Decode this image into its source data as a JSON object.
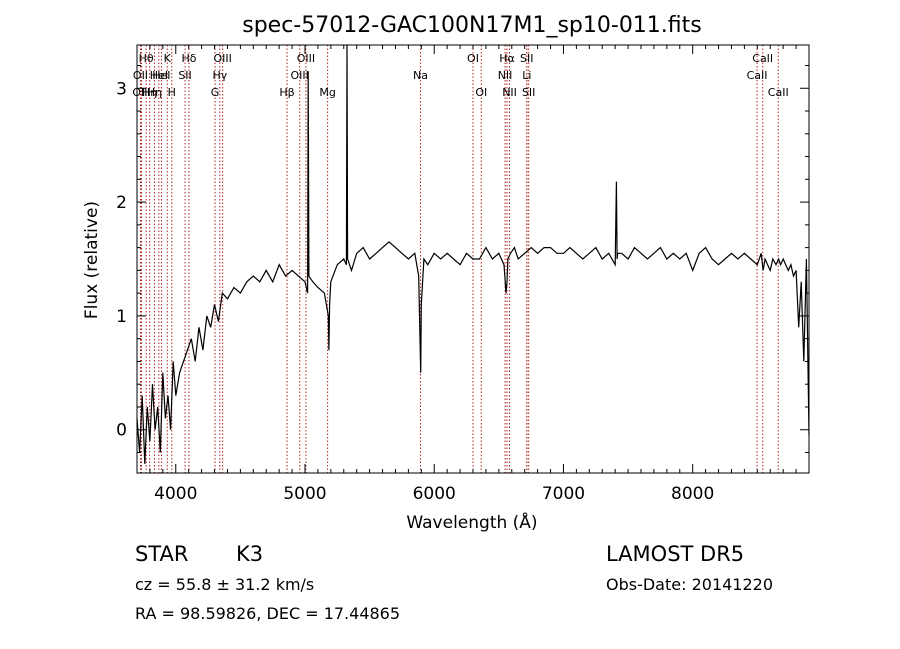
{
  "chart_data": {
    "type": "line",
    "title": "spec-57012-GAC100N17M1_sp10-011.fits",
    "xlabel": "Wavelength (Å)",
    "ylabel": "Flux (relative)",
    "xlim": [
      3700,
      8900
    ],
    "ylim": [
      -0.38,
      3.38
    ],
    "xticks": [
      4000,
      5000,
      6000,
      7000,
      8000
    ],
    "yticks": [
      0,
      1,
      2,
      3
    ],
    "grid": false,
    "series": [
      {
        "x": [
          3700,
          3720,
          3740,
          3760,
          3780,
          3800,
          3820,
          3840,
          3860,
          3880,
          3900,
          3920,
          3940,
          3960,
          3980,
          4000,
          4030,
          4060,
          4090,
          4120,
          4150,
          4180,
          4210,
          4240,
          4270,
          4300,
          4330,
          4360,
          4400,
          4450,
          4500,
          4550,
          4600,
          4650,
          4700,
          4750,
          4800,
          4850,
          4900,
          4950,
          5000,
          5020,
          5025,
          5030,
          5060,
          5100,
          5150,
          5180,
          5185,
          5190,
          5200,
          5250,
          5300,
          5320,
          5325,
          5330,
          5360,
          5400,
          5450,
          5500,
          5550,
          5600,
          5650,
          5700,
          5750,
          5800,
          5850,
          5880,
          5895,
          5900,
          5910,
          5920,
          5950,
          6000,
          6050,
          6100,
          6150,
          6200,
          6250,
          6300,
          6350,
          6400,
          6450,
          6500,
          6540,
          6555,
          6563,
          6570,
          6590,
          6620,
          6650,
          6700,
          6750,
          6800,
          6850,
          6900,
          6950,
          7000,
          7050,
          7100,
          7150,
          7200,
          7250,
          7300,
          7350,
          7400,
          7410,
          7415,
          7420,
          7450,
          7500,
          7550,
          7600,
          7650,
          7700,
          7750,
          7800,
          7850,
          7900,
          7950,
          8000,
          8050,
          8100,
          8150,
          8200,
          8250,
          8300,
          8350,
          8400,
          8450,
          8500,
          8530,
          8545,
          8560,
          8580,
          8600,
          8620,
          8645,
          8665,
          8680,
          8700,
          8720,
          8740,
          8760,
          8780,
          8800,
          8820,
          8840,
          8860,
          8880,
          8900
        ],
        "y": [
          0.1,
          -0.2,
          0.3,
          -0.3,
          0.2,
          -0.1,
          0.4,
          0.0,
          0.2,
          -0.2,
          0.5,
          0.1,
          0.3,
          0.0,
          0.6,
          0.3,
          0.5,
          0.6,
          0.7,
          0.8,
          0.6,
          0.9,
          0.7,
          1.0,
          0.9,
          1.1,
          0.95,
          1.2,
          1.15,
          1.25,
          1.2,
          1.3,
          1.35,
          1.3,
          1.4,
          1.3,
          1.45,
          1.35,
          1.4,
          1.35,
          1.3,
          1.2,
          3.15,
          1.35,
          1.3,
          1.25,
          1.2,
          1.0,
          0.7,
          1.1,
          1.3,
          1.45,
          1.5,
          1.45,
          3.38,
          1.5,
          1.4,
          1.55,
          1.6,
          1.5,
          1.55,
          1.6,
          1.65,
          1.6,
          1.55,
          1.5,
          1.55,
          1.35,
          0.5,
          1.1,
          1.3,
          1.5,
          1.45,
          1.55,
          1.5,
          1.55,
          1.5,
          1.45,
          1.55,
          1.5,
          1.5,
          1.6,
          1.5,
          1.55,
          1.45,
          1.2,
          1.3,
          1.5,
          1.55,
          1.6,
          1.5,
          1.55,
          1.6,
          1.55,
          1.6,
          1.6,
          1.55,
          1.55,
          1.6,
          1.55,
          1.5,
          1.55,
          1.6,
          1.5,
          1.55,
          1.45,
          2.18,
          1.5,
          1.55,
          1.55,
          1.5,
          1.6,
          1.55,
          1.5,
          1.55,
          1.6,
          1.5,
          1.55,
          1.5,
          1.55,
          1.4,
          1.55,
          1.6,
          1.5,
          1.45,
          1.5,
          1.55,
          1.5,
          1.55,
          1.5,
          1.45,
          1.55,
          1.4,
          1.5,
          1.45,
          1.4,
          1.5,
          1.45,
          1.5,
          1.45,
          1.5,
          1.45,
          1.4,
          1.45,
          1.35,
          1.4,
          0.9,
          1.3,
          0.6,
          1.5,
          -0.05
        ]
      }
    ],
    "lines": [
      {
        "wave": 3727,
        "label": "OII",
        "row": 1
      },
      {
        "wave": 3735,
        "label": "OIII",
        "row": 2
      },
      {
        "wave": 3771,
        "label": "Hθ",
        "row": 0
      },
      {
        "wave": 3798,
        "label": "Hη",
        "row": 2
      },
      {
        "wave": 3835,
        "label": "Hη",
        "row": 2
      },
      {
        "wave": 3869,
        "label": "HeI",
        "row": 1
      },
      {
        "wave": 3889,
        "label": "HeI",
        "row": 1
      },
      {
        "wave": 3934,
        "label": "K",
        "row": 0
      },
      {
        "wave": 3969,
        "label": "H",
        "row": 2
      },
      {
        "wave": 4072,
        "label": "SII",
        "row": 1
      },
      {
        "wave": 4102,
        "label": "Hδ",
        "row": 0
      },
      {
        "wave": 4304,
        "label": "G",
        "row": 2
      },
      {
        "wave": 4341,
        "label": "Hγ",
        "row": 1
      },
      {
        "wave": 4363,
        "label": "OIII",
        "row": 0
      },
      {
        "wave": 4861,
        "label": "Hβ",
        "row": 2
      },
      {
        "wave": 4959,
        "label": "OIII",
        "row": 1
      },
      {
        "wave": 5007,
        "label": "OIII",
        "row": 0
      },
      {
        "wave": 5175,
        "label": "Mg",
        "row": 2
      },
      {
        "wave": 5894,
        "label": "Na",
        "row": 1
      },
      {
        "wave": 6300,
        "label": "OI",
        "row": 0
      },
      {
        "wave": 6364,
        "label": "OI",
        "row": 2
      },
      {
        "wave": 6548,
        "label": "NII",
        "row": 1
      },
      {
        "wave": 6563,
        "label": "Hα",
        "row": 0
      },
      {
        "wave": 6583,
        "label": "NII",
        "row": 2
      },
      {
        "wave": 6716,
        "label": "SII",
        "row": 0
      },
      {
        "wave": 6717,
        "label": "Li",
        "row": 1
      },
      {
        "wave": 6731,
        "label": "SII",
        "row": 2
      },
      {
        "wave": 8498,
        "label": "CaII",
        "row": 1
      },
      {
        "wave": 8542,
        "label": "CaII",
        "row": 0
      },
      {
        "wave": 8662,
        "label": "CaII",
        "row": 2
      }
    ]
  },
  "info": {
    "class_label": "STAR",
    "subclass_label": "K3",
    "survey_label": "LAMOST DR5",
    "cz_text": "cz = 55.8 ± 31.2 km/s",
    "obs_date_text": "Obs-Date: 20141220",
    "coords_text": "RA =  98.59826, DEC =  17.44865"
  },
  "colors": {
    "spectrum": "#000000",
    "line_markers": "#b22222",
    "axes": "#000000",
    "background": "#ffffff"
  }
}
